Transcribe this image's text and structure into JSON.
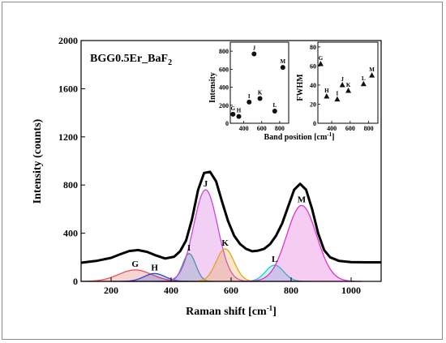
{
  "chart_data": {
    "type": "line",
    "sample_label": {
      "main": "BGG0.5Er_BaF",
      "sub": "2"
    },
    "xlabel": "Raman shift [cm",
    "xlabel_sup": "-1",
    "xlabel_end": "]",
    "ylabel": "Intensity (counts)",
    "xlim": [
      100,
      1100
    ],
    "ylim": [
      0,
      2000
    ],
    "x_ticks": [
      200,
      400,
      600,
      800,
      1000
    ],
    "y_ticks": [
      0,
      400,
      800,
      1200,
      1600,
      2000
    ],
    "grid": false,
    "peaks": [
      {
        "label": "G",
        "center": 280,
        "amplitude": 95,
        "width": 55,
        "color": "#e05555"
      },
      {
        "label": "H",
        "center": 345,
        "amplitude": 65,
        "width": 35,
        "color": "#3344cc"
      },
      {
        "label": "I",
        "center": 460,
        "amplitude": 230,
        "width": 22,
        "color": "#22aa99"
      },
      {
        "label": "J",
        "center": 515,
        "amplitude": 760,
        "width": 40,
        "color": "#cc44dd"
      },
      {
        "label": "K",
        "center": 580,
        "amplitude": 270,
        "width": 30,
        "color": "#e8a020"
      },
      {
        "label": "L",
        "center": 745,
        "amplitude": 135,
        "width": 30,
        "color": "#22cccc"
      },
      {
        "label": "M",
        "center": 835,
        "amplitude": 630,
        "width": 50,
        "color": "#dd33cc"
      }
    ],
    "measured_curve": {
      "x": [
        100,
        150,
        200,
        230,
        260,
        290,
        320,
        350,
        380,
        410,
        430,
        450,
        470,
        490,
        510,
        530,
        550,
        570,
        590,
        610,
        630,
        650,
        670,
        690,
        710,
        730,
        750,
        770,
        790,
        810,
        830,
        850,
        870,
        890,
        910,
        930,
        960,
        1000,
        1050,
        1100
      ],
      "y": [
        155,
        170,
        195,
        225,
        252,
        260,
        245,
        215,
        190,
        205,
        250,
        340,
        520,
        760,
        900,
        910,
        830,
        660,
        500,
        380,
        310,
        270,
        250,
        255,
        270,
        310,
        380,
        480,
        620,
        760,
        810,
        760,
        600,
        400,
        260,
        200,
        170,
        160,
        158,
        158
      ]
    },
    "inset_intensity": {
      "ylabel": "Intensity",
      "x_ticks": [
        400,
        600,
        800
      ],
      "y_ticks": [
        0,
        200,
        400,
        600,
        800
      ],
      "xlim": [
        250,
        900
      ],
      "ylim": [
        0,
        900
      ],
      "points": [
        {
          "label": "G",
          "x": 280,
          "y": 100
        },
        {
          "label": "H",
          "x": 345,
          "y": 75
        },
        {
          "label": "I",
          "x": 460,
          "y": 235
        },
        {
          "label": "J",
          "x": 515,
          "y": 770
        },
        {
          "label": "K",
          "x": 580,
          "y": 275
        },
        {
          "label": "L",
          "x": 745,
          "y": 135
        },
        {
          "label": "M",
          "x": 835,
          "y": 620
        }
      ]
    },
    "inset_fwhm": {
      "ylabel": "FWHM",
      "x_ticks": [
        400,
        600,
        800
      ],
      "y_ticks": [
        0,
        20,
        40,
        60,
        80
      ],
      "xlim": [
        250,
        900
      ],
      "ylim": [
        0,
        85
      ],
      "points": [
        {
          "label": "G",
          "x": 280,
          "y": 62
        },
        {
          "label": "H",
          "x": 345,
          "y": 28
        },
        {
          "label": "I",
          "x": 460,
          "y": 25
        },
        {
          "label": "J",
          "x": 515,
          "y": 40
        },
        {
          "label": "K",
          "x": 580,
          "y": 34
        },
        {
          "label": "L",
          "x": 745,
          "y": 41
        },
        {
          "label": "M",
          "x": 835,
          "y": 50
        }
      ]
    },
    "inset_xlabel": "Band position [cm",
    "inset_xlabel_sup": "-1",
    "inset_xlabel_end": "]"
  }
}
